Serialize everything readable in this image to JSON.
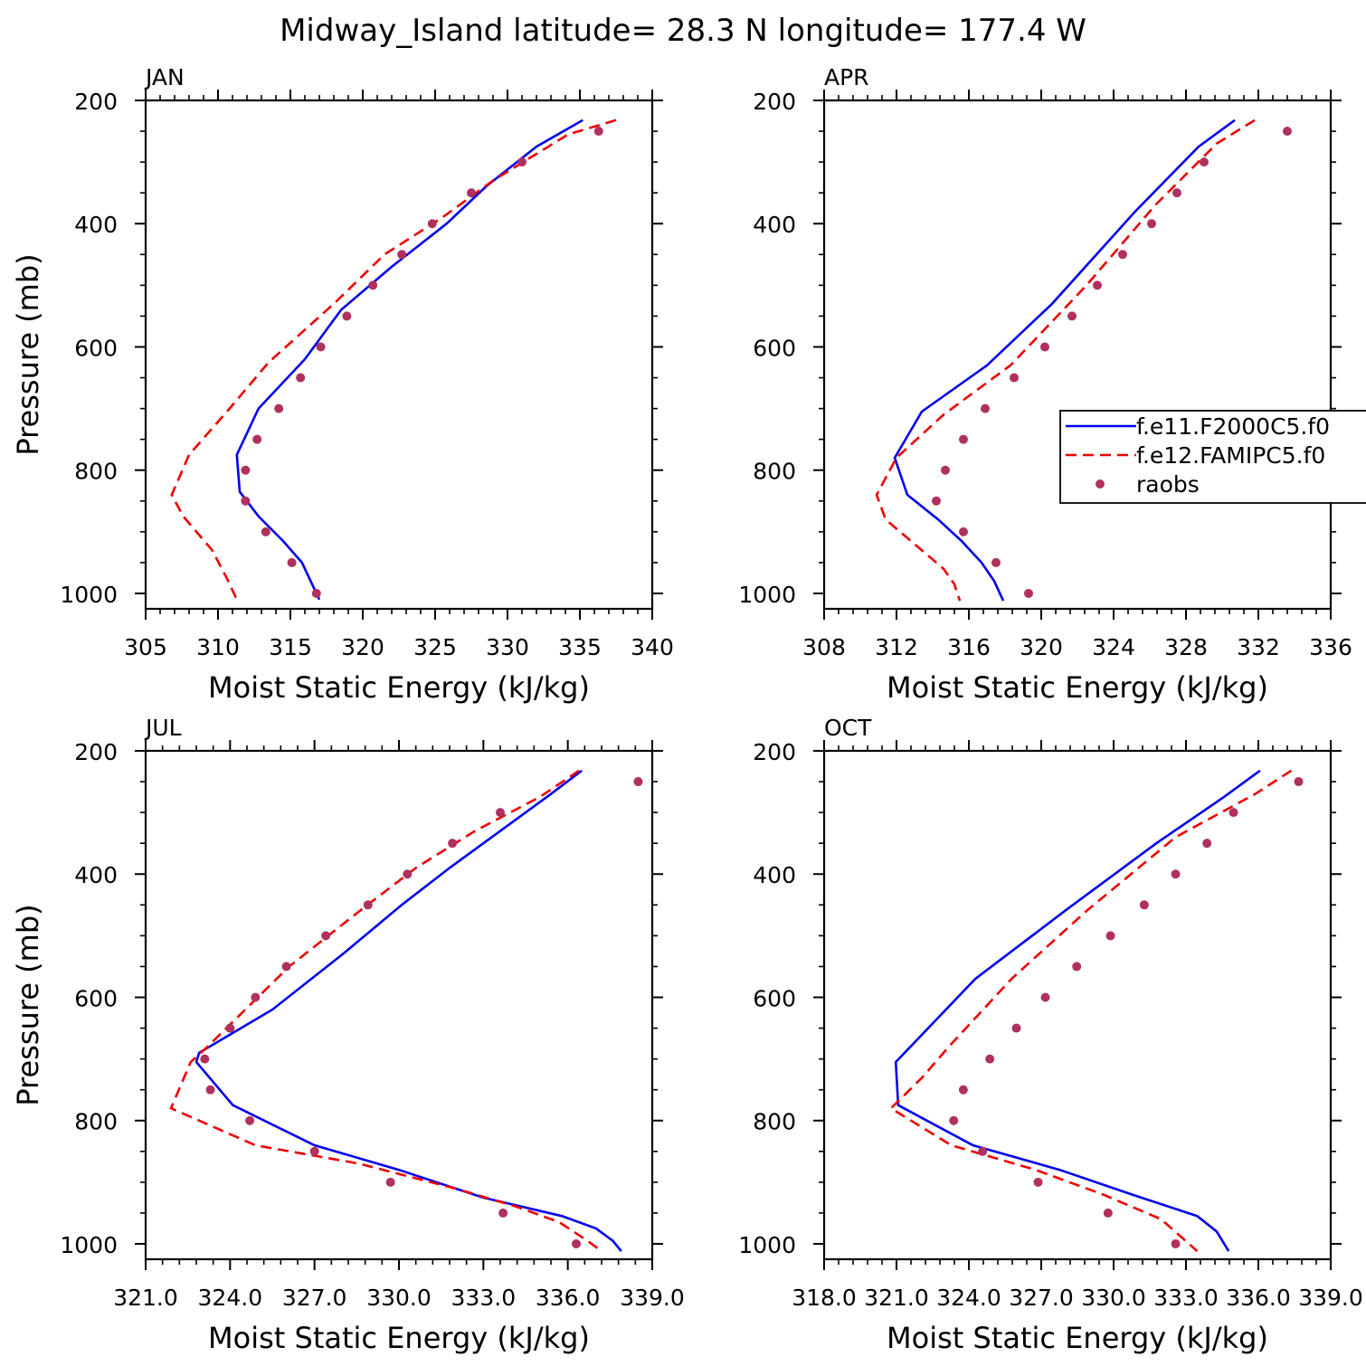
{
  "title": "Midway_Island  latitude= 28.3 N longitude= 177.4 W",
  "colors": {
    "model1": "#0000ee",
    "model2": "#ee0000",
    "raobs": "#b03060"
  },
  "legend": {
    "entries": [
      {
        "label": "f.e11.F2000C5.f0",
        "style": "solid",
        "color": "#0000ee"
      },
      {
        "label": "f.e12.FAMIPC5.f0",
        "style": "dashed",
        "color": "#ee0000"
      },
      {
        "label": "raobs",
        "style": "dot",
        "color": "#b03060"
      }
    ]
  },
  "chart_data": [
    {
      "type": "line",
      "panel": "JAN",
      "xlabel": "Moist Static Energy (kJ/kg)",
      "ylabel": "Pressure (mb)",
      "xlim": [
        305,
        340
      ],
      "ylim": [
        200,
        1025
      ],
      "xticks": [
        305,
        310,
        315,
        320,
        325,
        330,
        335,
        340
      ],
      "xtick_labels": [
        "305",
        "310",
        "315",
        "320",
        "325",
        "330",
        "335",
        "340"
      ],
      "yticks": [
        200,
        400,
        600,
        800,
        1000
      ],
      "ytick_labels": [
        "200",
        "400",
        "600",
        "800",
        "1000"
      ],
      "series": [
        {
          "name": "f.e11.F2000C5.f0",
          "style": "solid",
          "x": [
            335.2,
            332.0,
            328.5,
            325.8,
            322.0,
            318.5,
            316.0,
            312.8,
            311.3,
            311.5,
            312.8,
            314.5,
            315.8,
            317.0
          ],
          "y": [
            232,
            275,
            340,
            400,
            470,
            540,
            620,
            700,
            775,
            835,
            875,
            915,
            950,
            1010
          ]
        },
        {
          "name": "f.e12.FAMIPC5.f0",
          "style": "dashed",
          "x": [
            337.5,
            334.2,
            329.0,
            325.5,
            321.5,
            318.0,
            313.5,
            310.8,
            308.0,
            306.8,
            307.6,
            309.6,
            310.6,
            311.3
          ],
          "y": [
            232,
            255,
            330,
            390,
            450,
            530,
            625,
            700,
            775,
            840,
            875,
            930,
            975,
            1010
          ]
        },
        {
          "name": "raobs",
          "style": "dot",
          "x": [
            336.3,
            331.0,
            327.5,
            324.8,
            322.7,
            320.7,
            318.9,
            317.1,
            315.7,
            314.2,
            312.7,
            311.9,
            311.9,
            313.3,
            315.1,
            316.8
          ],
          "y": [
            250,
            300,
            350,
            400,
            450,
            500,
            550,
            600,
            650,
            700,
            750,
            800,
            850,
            900,
            950,
            1000
          ]
        }
      ]
    },
    {
      "type": "line",
      "panel": "APR",
      "xlabel": "Moist Static Energy (kJ/kg)",
      "ylabel": "",
      "xlim": [
        308,
        336
      ],
      "ylim": [
        200,
        1025
      ],
      "xticks": [
        308,
        312,
        316,
        320,
        324,
        328,
        332,
        336
      ],
      "xtick_labels": [
        "308",
        "312",
        "316",
        "320",
        "324",
        "328",
        "332",
        "336"
      ],
      "yticks": [
        200,
        400,
        600,
        800,
        1000
      ],
      "ytick_labels": [
        "200",
        "400",
        "600",
        "800",
        "1000"
      ],
      "series": [
        {
          "name": "f.e11.F2000C5.f0",
          "style": "solid",
          "x": [
            330.7,
            328.7,
            325.2,
            320.6,
            317.0,
            313.4,
            311.9,
            312.6,
            314.3,
            315.6,
            316.7,
            317.4,
            317.9
          ],
          "y": [
            232,
            275,
            380,
            530,
            630,
            705,
            780,
            840,
            880,
            915,
            950,
            980,
            1012
          ]
        },
        {
          "name": "f.e12.FAMIPC5.f0",
          "style": "dashed",
          "x": [
            331.8,
            329.7,
            326.3,
            322.5,
            318.3,
            314.6,
            312.0,
            310.9,
            311.4,
            313.0,
            314.6,
            315.2,
            315.5
          ],
          "y": [
            232,
            270,
            370,
            500,
            630,
            710,
            780,
            840,
            880,
            920,
            960,
            985,
            1012
          ]
        },
        {
          "name": "raobs",
          "style": "dot",
          "x": [
            333.6,
            329.0,
            327.5,
            326.1,
            324.5,
            323.1,
            321.7,
            320.2,
            318.5,
            316.9,
            315.7,
            314.7,
            314.2,
            315.7,
            317.5,
            319.3
          ],
          "y": [
            250,
            300,
            350,
            400,
            450,
            500,
            550,
            600,
            650,
            700,
            750,
            800,
            850,
            900,
            950,
            1000
          ]
        }
      ]
    },
    {
      "type": "line",
      "panel": "JUL",
      "xlabel": "Moist Static Energy (kJ/kg)",
      "ylabel": "Pressure (mb)",
      "xlim": [
        321.0,
        339.0
      ],
      "ylim": [
        200,
        1025
      ],
      "xticks": [
        321,
        324,
        327,
        330,
        333,
        336,
        339
      ],
      "xtick_labels": [
        "321.0",
        "324.0",
        "327.0",
        "330.0",
        "333.0",
        "336.0",
        "339.0"
      ],
      "yticks": [
        200,
        400,
        600,
        800,
        1000
      ],
      "ytick_labels": [
        "200",
        "400",
        "600",
        "800",
        "1000"
      ],
      "series": [
        {
          "name": "f.e11.F2000C5.f0",
          "style": "solid",
          "x": [
            336.5,
            335.4,
            333.6,
            331.8,
            330.1,
            328.0,
            325.5,
            322.9,
            322.8,
            324.1,
            327.0,
            330.0,
            333.0,
            335.8,
            337.0,
            337.6,
            337.9
          ],
          "y": [
            232,
            270,
            330,
            390,
            450,
            530,
            620,
            690,
            705,
            775,
            840,
            880,
            925,
            955,
            975,
            995,
            1012
          ]
        },
        {
          "name": "f.e12.FAMIPC5.f0",
          "style": "dashed",
          "x": [
            336.4,
            335.0,
            332.7,
            330.6,
            328.6,
            326.1,
            323.2,
            322.6,
            321.9,
            324.9,
            328.6,
            332.0,
            334.2,
            335.7,
            336.7,
            337.2
          ],
          "y": [
            232,
            275,
            330,
            390,
            460,
            550,
            680,
            705,
            780,
            840,
            870,
            910,
            940,
            965,
            995,
            1012
          ]
        },
        {
          "name": "raobs",
          "style": "dot",
          "x": [
            338.5,
            333.6,
            331.9,
            330.3,
            328.9,
            327.4,
            326.0,
            324.9,
            324.0,
            323.1,
            323.3,
            324.7,
            327.0,
            329.7,
            333.7,
            336.3
          ],
          "y": [
            250,
            300,
            350,
            400,
            450,
            500,
            550,
            600,
            650,
            700,
            750,
            800,
            850,
            900,
            950,
            1000
          ]
        }
      ]
    },
    {
      "type": "line",
      "panel": "OCT",
      "xlabel": "Moist Static Energy (kJ/kg)",
      "ylabel": "",
      "xlim": [
        318.03,
        339.03
      ],
      "ylim": [
        200,
        1025
      ],
      "xticks": [
        318.03,
        321.03,
        324.03,
        327.03,
        330.03,
        333.03,
        336.03,
        339.03
      ],
      "xtick_labels": [
        "318.0",
        "321.0",
        "324.0",
        "327.0",
        "330.0",
        "333.0",
        "336.0",
        "339.0"
      ],
      "yticks": [
        200,
        400,
        600,
        800,
        1000
      ],
      "ytick_labels": [
        "200",
        "400",
        "600",
        "800",
        "1000"
      ],
      "series": [
        {
          "name": "f.e11.F2000C5.f0",
          "style": "solid",
          "x": [
            336.1,
            334.6,
            331.8,
            328.0,
            324.3,
            321.0,
            321.1,
            324.2,
            327.8,
            330.8,
            333.5,
            334.3,
            334.8
          ],
          "y": [
            232,
            275,
            350,
            460,
            570,
            705,
            775,
            840,
            880,
            920,
            955,
            980,
            1012
          ]
        },
        {
          "name": "f.e12.FAMIPC5.f0",
          "style": "dashed",
          "x": [
            337.4,
            335.9,
            332.6,
            328.9,
            325.8,
            323.2,
            322.1,
            320.8,
            323.3,
            326.8,
            329.6,
            332.0,
            333.5
          ],
          "y": [
            232,
            270,
            340,
            460,
            570,
            680,
            730,
            780,
            840,
            880,
            920,
            960,
            1012
          ]
        },
        {
          "name": "raobs",
          "style": "dot",
          "x": [
            337.7,
            335.0,
            333.9,
            332.6,
            331.3,
            329.9,
            328.5,
            327.2,
            326.0,
            324.9,
            323.8,
            323.4,
            324.6,
            326.9,
            329.8,
            332.6
          ],
          "y": [
            250,
            300,
            350,
            400,
            450,
            500,
            550,
            600,
            650,
            700,
            750,
            800,
            850,
            900,
            950,
            1000
          ]
        }
      ]
    }
  ]
}
